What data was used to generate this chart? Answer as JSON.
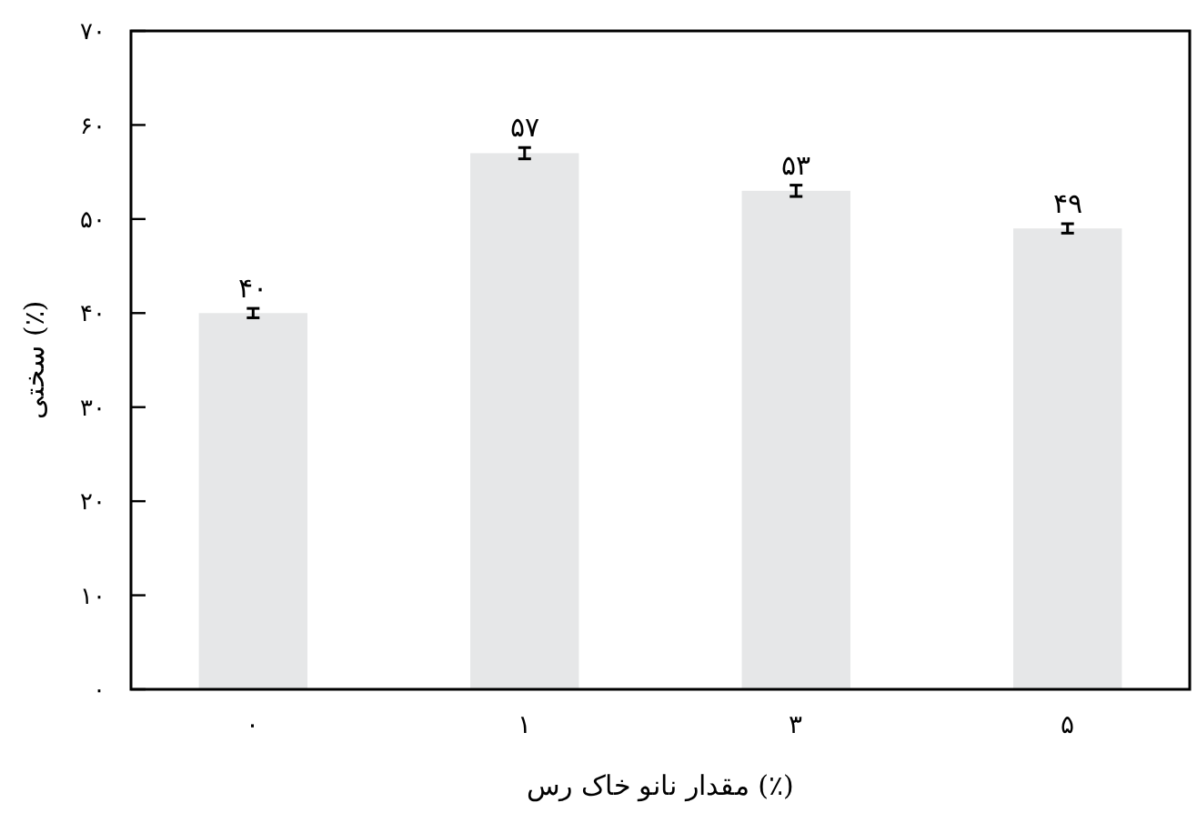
{
  "chart_data": {
    "type": "bar",
    "xlabel": "مقدار نانو خاک رس (٪)",
    "ylabel": "سختی (٪)",
    "categories": [
      "۰",
      "۱",
      "۳",
      "۵"
    ],
    "values": [
      40,
      57,
      53,
      49
    ],
    "errors": [
      0.5,
      0.6,
      0.6,
      0.5
    ],
    "value_labels": [
      "۴۰",
      "۵۷",
      "۵۳",
      "۴۹"
    ],
    "color": "#e6e7e8",
    "ylim": [
      0,
      70
    ],
    "yticks": [
      {
        "value": 0,
        "label": "۰"
      },
      {
        "value": 10,
        "label": "۱۰"
      },
      {
        "value": 20,
        "label": "۲۰"
      },
      {
        "value": 30,
        "label": "۳۰"
      },
      {
        "value": 40,
        "label": "۴۰"
      },
      {
        "value": 50,
        "label": "۵۰"
      },
      {
        "value": 60,
        "label": "۶۰"
      },
      {
        "value": 70,
        "label": "۷۰"
      }
    ],
    "grid": false
  }
}
